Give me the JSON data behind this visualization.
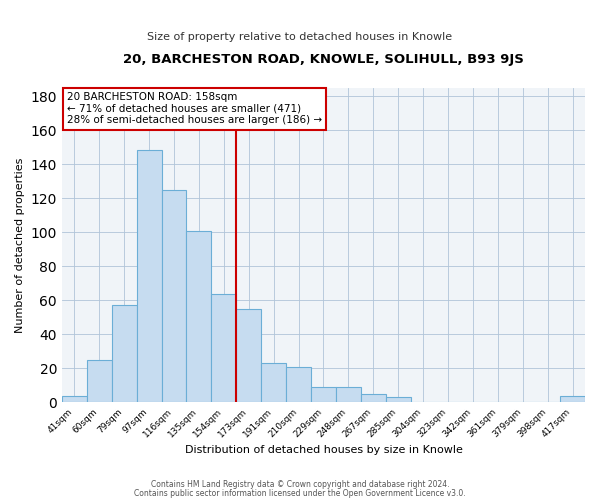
{
  "title": "20, BARCHESTON ROAD, KNOWLE, SOLIHULL, B93 9JS",
  "subtitle": "Size of property relative to detached houses in Knowle",
  "xlabel": "Distribution of detached houses by size in Knowle",
  "ylabel": "Number of detached properties",
  "bar_labels": [
    "41sqm",
    "60sqm",
    "79sqm",
    "97sqm",
    "116sqm",
    "135sqm",
    "154sqm",
    "173sqm",
    "191sqm",
    "210sqm",
    "229sqm",
    "248sqm",
    "267sqm",
    "285sqm",
    "304sqm",
    "323sqm",
    "342sqm",
    "361sqm",
    "379sqm",
    "398sqm",
    "417sqm"
  ],
  "bar_values": [
    4,
    25,
    57,
    148,
    125,
    101,
    64,
    55,
    23,
    21,
    9,
    9,
    5,
    3,
    0,
    0,
    0,
    0,
    0,
    0,
    4
  ],
  "bar_color": "#c6dcf0",
  "bar_edge_color": "#6baed6",
  "vline_x_index": 6,
  "vline_color": "#cc0000",
  "annotation_title": "20 BARCHESTON ROAD: 158sqm",
  "annotation_line1": "← 71% of detached houses are smaller (471)",
  "annotation_line2": "28% of semi-detached houses are larger (186) →",
  "annotation_box_color": "#ffffff",
  "annotation_box_edge": "#cc0000",
  "ylim": [
    0,
    185
  ],
  "yticks": [
    0,
    20,
    40,
    60,
    80,
    100,
    120,
    140,
    160,
    180
  ],
  "footer1": "Contains HM Land Registry data © Crown copyright and database right 2024.",
  "footer2": "Contains public sector information licensed under the Open Government Licence v3.0.",
  "bg_color": "#f0f4f8"
}
